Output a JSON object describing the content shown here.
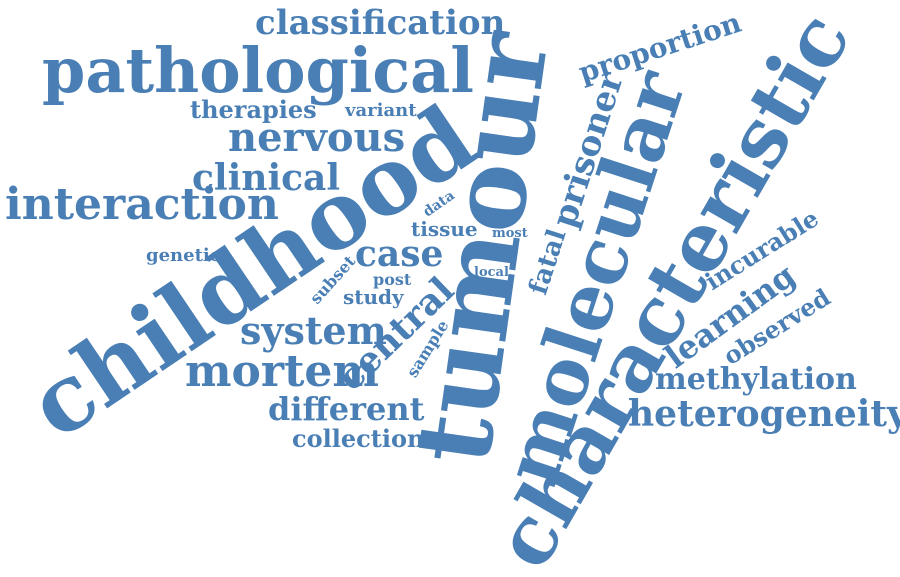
{
  "colors": {
    "word": "#4a7fb5",
    "background": "#ffffff"
  },
  "words": {
    "classification": "classification",
    "pathological": "pathological",
    "therapies": "therapies",
    "variant": "variant",
    "nervous": "nervous",
    "clinical": "clinical",
    "interaction": "interaction",
    "childhood": "childhood",
    "tumour": "tumour",
    "molecular": "molecular",
    "characteristic": "characteristic",
    "proportion": "proportion",
    "prisoner": "prisoner",
    "data": "data",
    "tissue": "tissue",
    "most": "most",
    "case": "case",
    "genetic": "genetic",
    "subset": "subset",
    "post": "post",
    "local": "local",
    "fatal": "fatal",
    "study": "study",
    "incurable": "incurable",
    "learning": "learning",
    "observed": "observed",
    "system": "system",
    "central": "central",
    "sample": "sample",
    "mortem": "mortem",
    "methylation": "methylation",
    "heterogeneity": "heterogeneity",
    "different": "different",
    "collection": "collection"
  }
}
